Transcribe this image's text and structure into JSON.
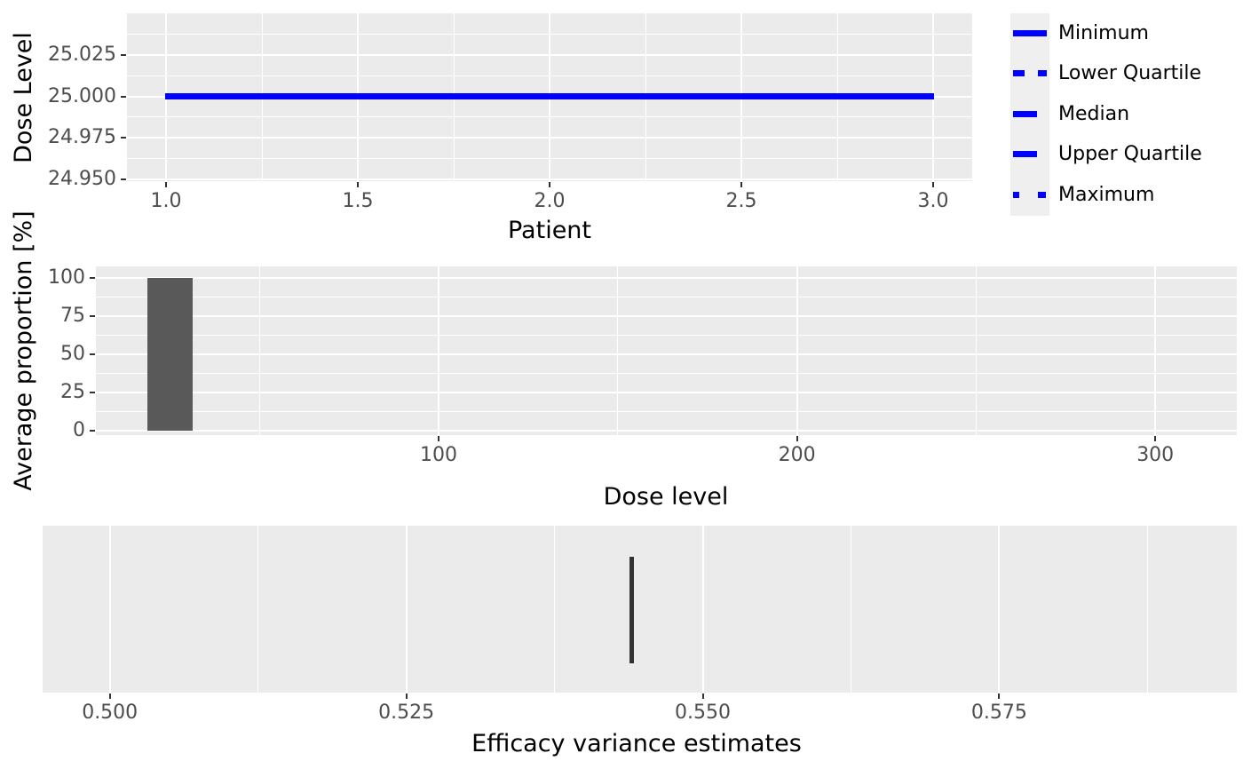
{
  "figure": {
    "background": "#ffffff",
    "panel_background": "#EBEBEB",
    "gridline_color": "#ffffff",
    "tick_text_color": "#4D4D4D",
    "tick_mark_color": "#333333",
    "axis_title_color": "#000000"
  },
  "legend": {
    "line_color": "#0000FF",
    "key_background": "#EFEFEF",
    "entries": [
      {
        "label": "Minimum",
        "pattern": "solid"
      },
      {
        "label": "Lower Quartile",
        "pattern": "dashed"
      },
      {
        "label": "Median",
        "pattern": "longdash"
      },
      {
        "label": "Upper Quartile",
        "pattern": "longdash"
      },
      {
        "label": "Maximum",
        "pattern": "dotted"
      }
    ]
  },
  "chart_data": [
    {
      "type": "line",
      "panel": "top",
      "xlabel": "Patient",
      "ylabel": "Dose Level",
      "x_ticks": [
        "1.0",
        "1.5",
        "2.0",
        "2.5",
        "3.0"
      ],
      "x_minor": [
        1.25,
        1.75,
        2.25,
        2.75
      ],
      "y_ticks": [
        "24.950",
        "24.975",
        "25.000",
        "25.025"
      ],
      "y_minor": [
        24.9625,
        24.9875,
        25.0125,
        25.0375
      ],
      "xlim": [
        0.9,
        3.1
      ],
      "ylim": [
        24.949,
        25.051
      ],
      "color": "#0000FF",
      "series": [
        {
          "name": "Minimum",
          "linetype": "solid",
          "x": [
            1,
            3
          ],
          "y": [
            25,
            25
          ]
        },
        {
          "name": "Lower Quartile",
          "linetype": "dashed",
          "x": [
            1,
            3
          ],
          "y": [
            25,
            25
          ]
        },
        {
          "name": "Median",
          "linetype": "longdash",
          "x": [
            1,
            3
          ],
          "y": [
            25,
            25
          ]
        },
        {
          "name": "Upper Quartile",
          "linetype": "longdash",
          "x": [
            1,
            3
          ],
          "y": [
            25,
            25
          ]
        },
        {
          "name": "Maximum",
          "linetype": "dotted",
          "x": [
            1,
            3
          ],
          "y": [
            25,
            25
          ]
        }
      ]
    },
    {
      "type": "bar",
      "panel": "middle",
      "xlabel": "Dose level",
      "ylabel": "Average proportion [%]",
      "x_ticks": [
        "100",
        "200",
        "300"
      ],
      "x_minor": [
        50,
        150,
        250
      ],
      "y_ticks": [
        "0",
        "25",
        "50",
        "75",
        "100"
      ],
      "y_minor": [
        12.5,
        37.5,
        62.5,
        87.5
      ],
      "xlim": [
        4,
        323
      ],
      "ylim": [
        -3,
        106
      ],
      "bar_color": "#595959",
      "bars": [
        {
          "x": 25,
          "height": 100,
          "width": 12.75
        }
      ]
    },
    {
      "type": "rug",
      "panel": "bottom",
      "xlabel": "Efficacy variance estimates",
      "x_ticks": [
        "0.500",
        "0.525",
        "0.550",
        "0.575"
      ],
      "x_minor": [
        0.5125,
        0.5375,
        0.5625,
        0.5875
      ],
      "xlim": [
        0.4943,
        0.595
      ],
      "mark_color": "#333333",
      "points": [
        0.544
      ]
    }
  ]
}
